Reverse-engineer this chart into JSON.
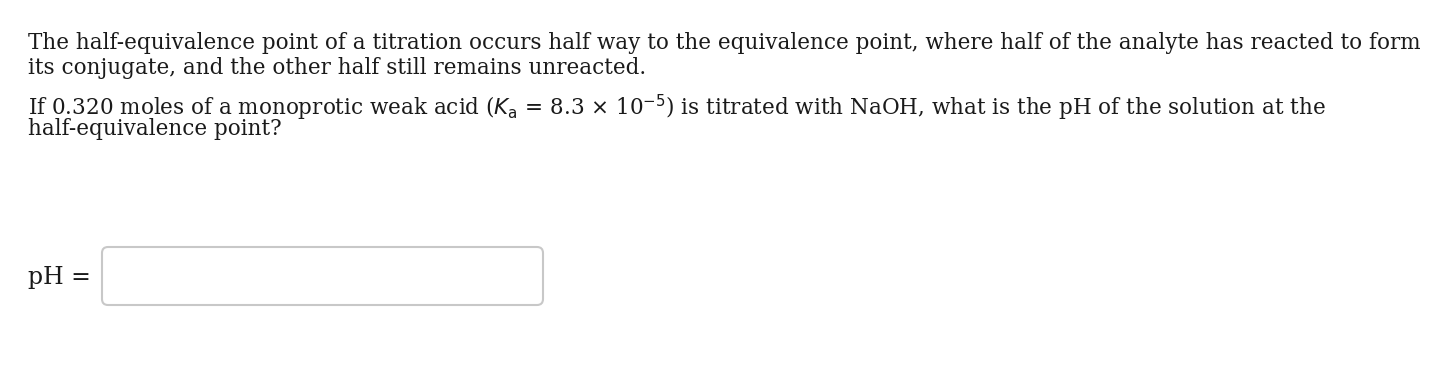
{
  "bg_color": "#ffffff",
  "border_color": "#c8c8c8",
  "text_color": "#1a1a1a",
  "paragraph1_line1": "The half-equivalence point of a titration occurs half way to the equivalence point, where half of the analyte has reacted to form",
  "paragraph1_line2": "its conjugate, and the other half still remains unreacted.",
  "paragraph2_line1": "If 0.320 moles of a monoprotic weak acid ($K_\\mathrm{a}$ = 8.3 $\\times$ 10$^{-5}$) is titrated with NaOH, what is the pH of the solution at the",
  "paragraph2_line2": "half-equivalence point?",
  "answer_label": "pH =",
  "font_size_main": 15.5,
  "font_size_label": 17
}
